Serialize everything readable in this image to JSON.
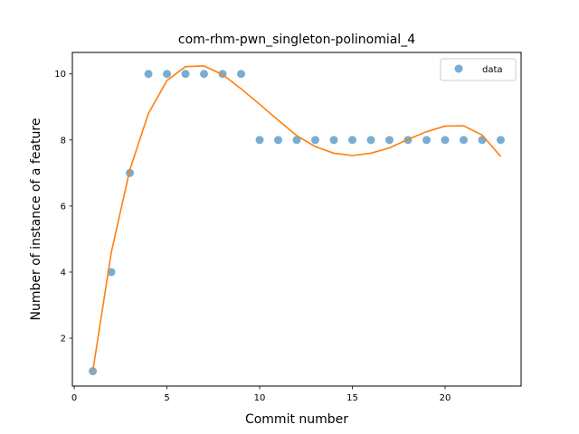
{
  "chart_data": {
    "type": "scatter",
    "title": "com-rhm-pwn_singleton-polinomial_4",
    "xlabel": "Commit number",
    "ylabel": "Number of instance of a feature",
    "xlim": [
      -0.1,
      24.1
    ],
    "ylim": [
      0.55,
      10.65
    ],
    "xticks": [
      0,
      5,
      10,
      15,
      20
    ],
    "yticks": [
      2,
      4,
      6,
      8,
      10
    ],
    "grid": false,
    "legend_position": "top-right",
    "series": [
      {
        "name": "data",
        "kind": "scatter",
        "color": "#1f77b4",
        "x": [
          1,
          2,
          3,
          4,
          5,
          6,
          7,
          8,
          9,
          10,
          11,
          12,
          13,
          14,
          15,
          16,
          17,
          18,
          19,
          20,
          21,
          22,
          23
        ],
        "y": [
          1,
          4,
          7,
          10,
          10,
          10,
          10,
          10,
          10,
          8,
          8,
          8,
          8,
          8,
          8,
          8,
          8,
          8,
          8,
          8,
          8,
          8,
          8
        ]
      },
      {
        "kind": "line",
        "color": "#ff7f0e",
        "x": [
          1,
          2,
          3,
          4,
          5,
          6,
          7,
          8,
          9,
          10,
          11,
          12,
          13,
          14,
          15,
          16,
          17,
          18,
          19,
          20,
          21,
          22,
          23
        ],
        "y": [
          1.0,
          4.6,
          7.1,
          8.8,
          9.8,
          10.22,
          10.24,
          9.98,
          9.55,
          9.08,
          8.6,
          8.13,
          7.8,
          7.6,
          7.53,
          7.6,
          7.76,
          8.02,
          8.25,
          8.42,
          8.43,
          8.15,
          7.5
        ]
      }
    ]
  }
}
